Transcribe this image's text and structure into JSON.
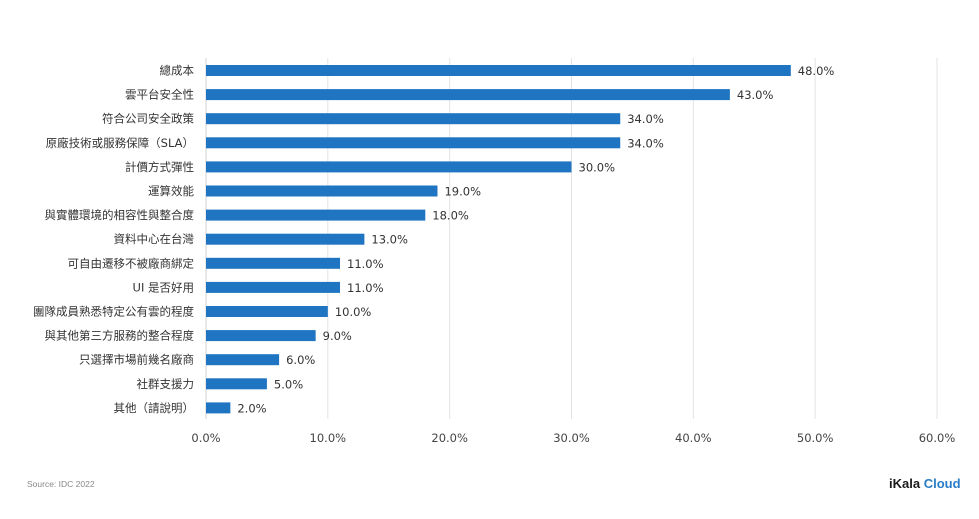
{
  "chart_data": {
    "type": "bar",
    "orientation": "horizontal",
    "categories": [
      "總成本",
      "雲平台安全性",
      "符合公司安全政策",
      "原廠技術或服務保障（SLA）",
      "計價方式彈性",
      "運算效能",
      "與實體環境的相容性與整合度",
      "資料中心在台灣",
      "可自由遷移不被廠商綁定",
      "UI 是否好用",
      "團隊成員熟悉特定公有雲的程度",
      "與其他第三方服務的整合程度",
      "只選擇市場前幾名廠商",
      "社群支援力",
      "其他（請說明）"
    ],
    "values": [
      48.0,
      43.0,
      34.0,
      34.0,
      30.0,
      19.0,
      18.0,
      13.0,
      11.0,
      11.0,
      10.0,
      9.0,
      6.0,
      5.0,
      2.0
    ],
    "value_labels": [
      "48.0%",
      "43.0%",
      "34.0%",
      "34.0%",
      "30.0%",
      "19.0%",
      "18.0%",
      "13.0%",
      "11.0%",
      "11.0%",
      "10.0%",
      "9.0%",
      "6.0%",
      "5.0%",
      "2.0%"
    ],
    "x_ticks": [
      0,
      10,
      20,
      30,
      40,
      50,
      60
    ],
    "x_tick_labels": [
      "0.0%",
      "10.0%",
      "20.0%",
      "30.0%",
      "40.0%",
      "50.0%",
      "60.0%"
    ],
    "xlim": [
      0,
      60
    ],
    "grid": "vertical",
    "legend": "none",
    "bar_color": "#1f75c1",
    "grid_color": "#e3e3e3"
  },
  "footer": {
    "source": "Source: IDC 2022",
    "brand_part1": "iKala",
    "brand_part2": "Cloud"
  }
}
